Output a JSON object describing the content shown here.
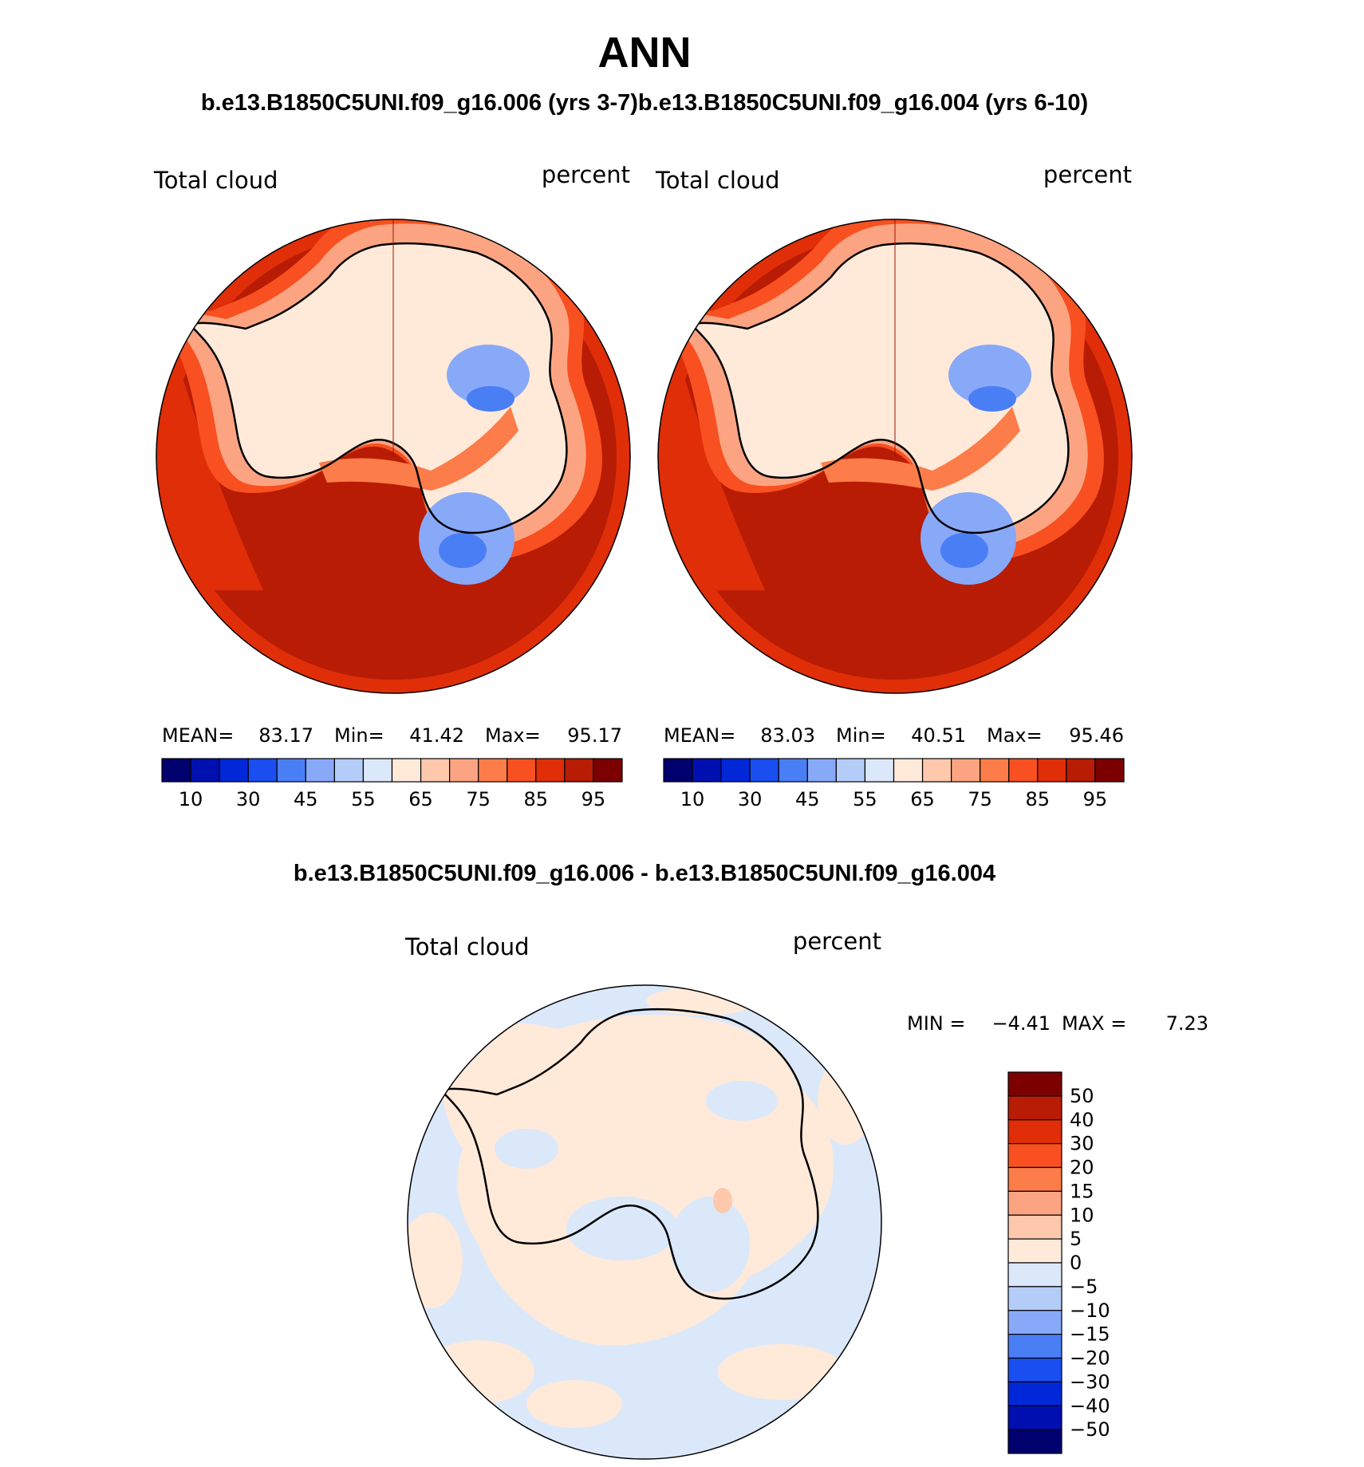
{
  "season": "ANN",
  "top_title": "b.e13.B1850C5UNI.f09_g16.006 (yrs 3-7)b.e13.B1850C5UNI.f09_g16.004 (yrs 6-10)",
  "diff_title": "b.e13.B1850C5UNI.f09_g16.006 - b.e13.B1850C5UNI.f09_g16.004",
  "panels": [
    {
      "variable": "Total cloud",
      "units": "percent",
      "stats": {
        "mean_label": "MEAN=",
        "mean": "83.17",
        "min_label": "Min=",
        "min": "41.42",
        "max_label": "Max=",
        "max": "95.17"
      }
    },
    {
      "variable": "Total cloud",
      "units": "percent",
      "stats": {
        "mean_label": "MEAN=",
        "mean": "83.03",
        "min_label": "Min=",
        "min": "40.51",
        "max_label": "Max=",
        "max": "95.46"
      }
    }
  ],
  "diff_panel": {
    "variable": "Total cloud",
    "units": "percent",
    "stats": {
      "min_label": "MIN =",
      "min": "−4.41",
      "max_label": "MAX =",
      "max": "7.23"
    }
  },
  "colorbar_top": {
    "colors": [
      "#00006e",
      "#0010b0",
      "#0028d8",
      "#1a4ef0",
      "#4a7ef4",
      "#88a8f8",
      "#b4ccf8",
      "#dae8fa",
      "#ffeada",
      "#fdc8ac",
      "#fca482",
      "#fc7c4a",
      "#f85020",
      "#e02e08",
      "#b81c04",
      "#7c0000"
    ],
    "labels": [
      "10",
      "30",
      "45",
      "55",
      "65",
      "75",
      "85",
      "95"
    ]
  },
  "colorbar_diff": {
    "colors_top_to_bottom": [
      "#7c0000",
      "#b81c04",
      "#e02e08",
      "#f85020",
      "#fc7c4a",
      "#fca482",
      "#fdc8ac",
      "#ffeada",
      "#dae8fa",
      "#b4ccf8",
      "#88a8f8",
      "#4a7ef4",
      "#1a4ef0",
      "#0028d8",
      "#0010b0",
      "#00006e"
    ],
    "labels_top_to_bottom": [
      "50",
      "40",
      "30",
      "20",
      "15",
      "10",
      "5",
      "0",
      "−5",
      "−10",
      "−15",
      "−20",
      "−30",
      "−40",
      "−50"
    ]
  }
}
